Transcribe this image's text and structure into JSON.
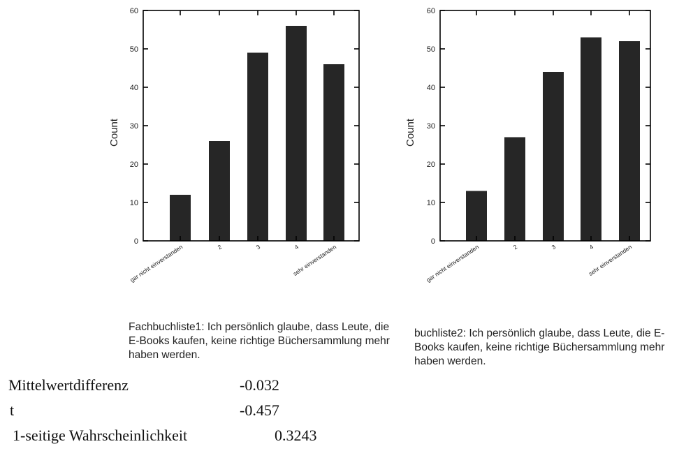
{
  "chart_data": [
    {
      "type": "bar",
      "categories": [
        "gar nicht einverstanden",
        "2",
        "3",
        "4",
        "sehr einverstanden"
      ],
      "values": [
        12,
        26,
        49,
        56,
        46
      ],
      "ylabel": "Count",
      "ylim": [
        0,
        60
      ],
      "yticks": [
        0,
        10,
        20,
        30,
        40,
        50,
        60
      ],
      "caption": "Fachbuchliste1: Ich persönlich glaube, dass Leute, die E-Books kaufen, keine richtige Büchersammlung mehr haben werden."
    },
    {
      "type": "bar",
      "categories": [
        "gar nicht einverstanden",
        "2",
        "3",
        "4",
        "sehr einverstanden"
      ],
      "values": [
        13,
        27,
        44,
        53,
        52
      ],
      "ylabel": "Count",
      "ylim": [
        0,
        60
      ],
      "yticks": [
        0,
        10,
        20,
        30,
        40,
        50,
        60
      ],
      "caption": "buchliste2: Ich persönlich glaube, dass Leute, die E-Books kaufen, keine richtige Büchersammlung mehr haben werden."
    }
  ],
  "stats": [
    {
      "label": "Mittelwertdifferenz",
      "value": "-0.032"
    },
    {
      "label": "t",
      "value": "-0.457"
    },
    {
      "label": "1-seitige Wahrscheinlichkeit",
      "value": "0.3243"
    }
  ],
  "colors": {
    "bar": "#262626",
    "axis": "#000000",
    "text": "#222222"
  }
}
